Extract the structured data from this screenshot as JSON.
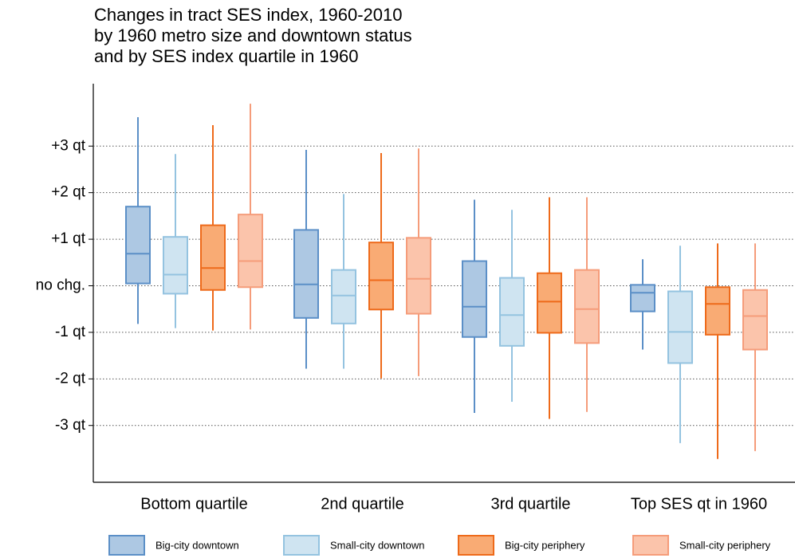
{
  "chart_data": {
    "type": "box",
    "title": [
      "Changes in tract SES index, 1960-2010",
      "by 1960 metro size and downtown status",
      "and by SES index quartile in 1960"
    ],
    "categories": [
      "Bottom quartile",
      "2nd quartile",
      "3rd quartile",
      "Top SES qt in 1960"
    ],
    "series": [
      {
        "name": "Big-city downtown",
        "color": "#adc8e3",
        "edge_color": "#5b8fc7",
        "whisker_low": [
          -0.82,
          -1.78,
          -2.73,
          -1.37
        ],
        "q1": [
          0.05,
          -0.69,
          -1.1,
          -0.55
        ],
        "median": [
          0.69,
          0.03,
          -0.45,
          -0.15
        ],
        "q3": [
          1.7,
          1.2,
          0.53,
          0.02
        ],
        "whisker_high": [
          3.62,
          2.92,
          1.85,
          0.57
        ]
      },
      {
        "name": "Small-city downtown",
        "color": "#cfe4f1",
        "edge_color": "#94c3e0",
        "whisker_low": [
          -0.91,
          -1.78,
          -2.49,
          -3.38
        ],
        "q1": [
          -0.17,
          -0.81,
          -1.29,
          -1.66
        ],
        "median": [
          0.24,
          -0.21,
          -0.63,
          -0.99
        ],
        "q3": [
          1.05,
          0.34,
          0.17,
          -0.12
        ],
        "whisker_high": [
          2.83,
          1.97,
          1.63,
          0.86
        ]
      },
      {
        "name": "Big-city periphery",
        "color": "#f9ab74",
        "edge_color": "#ee6a1a",
        "whisker_low": [
          -0.96,
          -1.99,
          -2.86,
          -3.72
        ],
        "q1": [
          -0.09,
          -0.51,
          -1.01,
          -1.05
        ],
        "median": [
          0.38,
          0.12,
          -0.34,
          -0.39
        ],
        "q3": [
          1.3,
          0.93,
          0.27,
          -0.03
        ],
        "whisker_high": [
          3.45,
          2.85,
          1.9,
          0.91
        ]
      },
      {
        "name": "Small-city periphery",
        "color": "#fbc4ab",
        "edge_color": "#f59c7a",
        "whisker_low": [
          -0.94,
          -1.94,
          -2.71,
          -3.55
        ],
        "q1": [
          -0.03,
          -0.6,
          -1.23,
          -1.37
        ],
        "median": [
          0.53,
          0.15,
          -0.5,
          -0.65
        ],
        "q3": [
          1.53,
          1.03,
          0.34,
          -0.09
        ],
        "whisker_high": [
          3.91,
          2.95,
          1.9,
          0.91
        ]
      }
    ],
    "ylim": [
      -4.22,
      4.34
    ],
    "yticks": [
      {
        "value": -3,
        "label": "-3 qt"
      },
      {
        "value": -2,
        "label": "-2 qt"
      },
      {
        "value": -1,
        "label": "-1 qt"
      },
      {
        "value": 0,
        "label": "no chg."
      },
      {
        "value": 1,
        "label": "+1 qt"
      },
      {
        "value": 2,
        "label": "+2 qt"
      },
      {
        "value": 3,
        "label": "+3 qt"
      }
    ],
    "grid": true
  }
}
